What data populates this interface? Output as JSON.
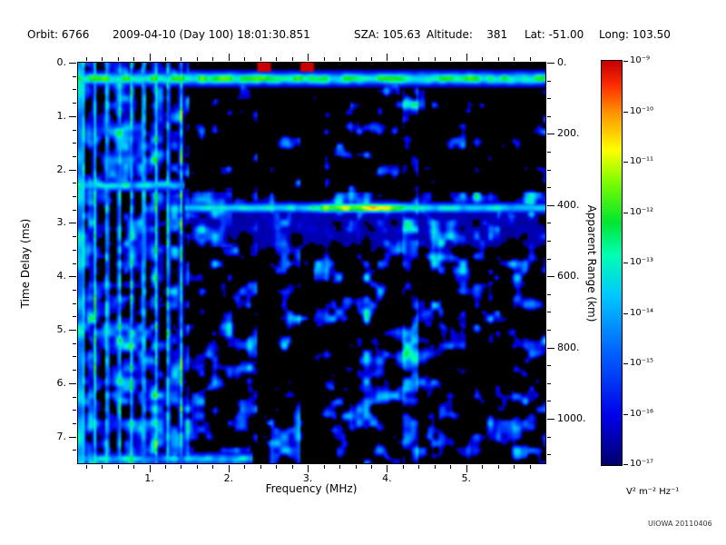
{
  "header": {
    "items": [
      "Orbit: 6766",
      "2009-04-10 (Day 100) 18:01:30.851",
      "SZA: 105.63",
      "Altitude:    381",
      "Lat: -51.00",
      "Long: 103.50"
    ]
  },
  "chart_data": {
    "type": "heatmap",
    "description": "Radar sounder ionogram: echo spectral density vs frequency and time delay",
    "xlabel": "Frequency (MHz)",
    "ylabel_left": "Time Delay (ms)",
    "ylabel_right": "Apparent Range (km)",
    "x_range_mhz": [
      0.1,
      6.0
    ],
    "x_ticks": [
      {
        "v": 1,
        "label": "1."
      },
      {
        "v": 2,
        "label": "2."
      },
      {
        "v": 3,
        "label": "3."
      },
      {
        "v": 4,
        "label": "4."
      },
      {
        "v": 5,
        "label": "5."
      }
    ],
    "x_minor_step": 0.2,
    "y_range_ms": [
      0,
      7.5
    ],
    "y_ticks_left": [
      {
        "v": 0,
        "label": "0."
      },
      {
        "v": 1,
        "label": "1."
      },
      {
        "v": 2,
        "label": "2."
      },
      {
        "v": 3,
        "label": "3."
      },
      {
        "v": 4,
        "label": "4."
      },
      {
        "v": 5,
        "label": "5."
      },
      {
        "v": 6,
        "label": "6."
      },
      {
        "v": 7,
        "label": "7."
      }
    ],
    "y_minor_step_ms": 0.25,
    "y_range_km": [
      0,
      1125
    ],
    "y_ticks_right": [
      {
        "v": 0,
        "label": "0."
      },
      {
        "v": 200,
        "label": "200."
      },
      {
        "v": 400,
        "label": "400."
      },
      {
        "v": 600,
        "label": "600."
      },
      {
        "v": 800,
        "label": "800."
      },
      {
        "v": 1000,
        "label": "1000."
      }
    ],
    "y_minor_step_km": 50,
    "colorbar": {
      "tick_labels": [
        "10⁻⁹",
        "10⁻¹⁰",
        "10⁻¹¹",
        "10⁻¹²",
        "10⁻¹³",
        "10⁻¹⁴",
        "10⁻¹⁵",
        "10⁻¹⁶",
        "10⁻¹⁷"
      ],
      "units": "V² m⁻² Hz⁻¹",
      "min": "10⁻¹⁷",
      "max": "10⁻⁹",
      "stops": [
        [
          0.0,
          "#00006e"
        ],
        [
          0.12,
          "#0000e8"
        ],
        [
          0.28,
          "#0064ff"
        ],
        [
          0.42,
          "#00c8ff"
        ],
        [
          0.52,
          "#00ffb4"
        ],
        [
          0.6,
          "#00e632"
        ],
        [
          0.7,
          "#7dfc00"
        ],
        [
          0.78,
          "#ffff00"
        ],
        [
          0.87,
          "#ff9600"
        ],
        [
          0.94,
          "#ff2d00"
        ],
        [
          1.0,
          "#c80000"
        ]
      ]
    },
    "features": {
      "seed": 6766,
      "background": "black",
      "surface_band": {
        "t_ms": 0.3,
        "sigma_ms": 0.11,
        "intensity": 0.55
      },
      "plasma_harmonic_lines_mhz": [
        0.16,
        0.31,
        0.47,
        0.62,
        0.78,
        0.93,
        1.09,
        1.24,
        1.4
      ],
      "left_noise_region_max_mhz": 1.5,
      "left_trace": {
        "t_ms": 2.3,
        "f_end_mhz": 1.45,
        "intensity": 0.5
      },
      "ionosphere_trace": {
        "t_ms": 2.72,
        "f_start_mhz": 1.45,
        "intensity": 0.48,
        "hot_f_center_mhz": 3.72,
        "hot_f_halfwidth_mhz": 0.55,
        "hot_intensity": 0.85
      },
      "enhanced_column_mhz": 4.3,
      "dark_columns_mhz": [
        2.45,
        3.0
      ],
      "bottom_band": {
        "t_ms": 7.42,
        "f_end_mhz": 2.3,
        "intensity": 0.45
      }
    }
  },
  "credit": "UIOWA 20110406"
}
